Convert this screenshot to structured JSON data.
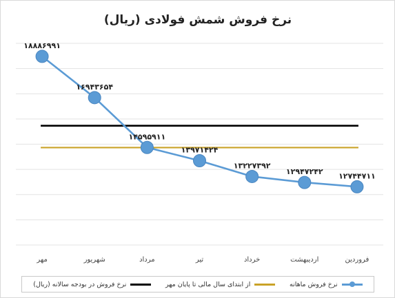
{
  "chart_data": {
    "type": "line",
    "title": "نرخ فروش شمش فولادی (ریال)",
    "categories": [
      "فروردین",
      "اردیبهشت",
      "خرداد",
      "تیر",
      "مرداد",
      "شهریور",
      "مهر"
    ],
    "series": [
      {
        "name": "نرخ فروش ماهانه",
        "color": "#5b9bd5",
        "values": [
          12744711,
          12947242,
          13227392,
          13971424,
          14595911,
          16943654,
          18886991
        ],
        "labels": [
          "۱۲۷۴۴۷۱۱",
          "۱۲۹۴۷۲۴۲",
          "۱۳۲۲۷۳۹۲",
          "۱۳۹۷۱۴۲۴",
          "۱۴۵۹۵۹۱۱",
          "۱۶۹۴۳۶۵۴",
          "۱۸۸۸۶۹۹۱"
        ]
      },
      {
        "name": "از ابتدای سال مالی تا پایان مهر",
        "color": "#c9a227",
        "values": [
          14590000,
          14590000,
          14590000,
          14590000,
          14590000,
          14590000,
          14590000
        ]
      },
      {
        "name": "نرخ فروش در بودجه سالانه (ریال)",
        "color": "#000000",
        "values": [
          15620000,
          15620000,
          15620000,
          15620000,
          15620000,
          15620000,
          15620000
        ]
      }
    ],
    "ylim": [
      10000000,
      19500000
    ],
    "grid": true,
    "legend_position": "bottom"
  }
}
